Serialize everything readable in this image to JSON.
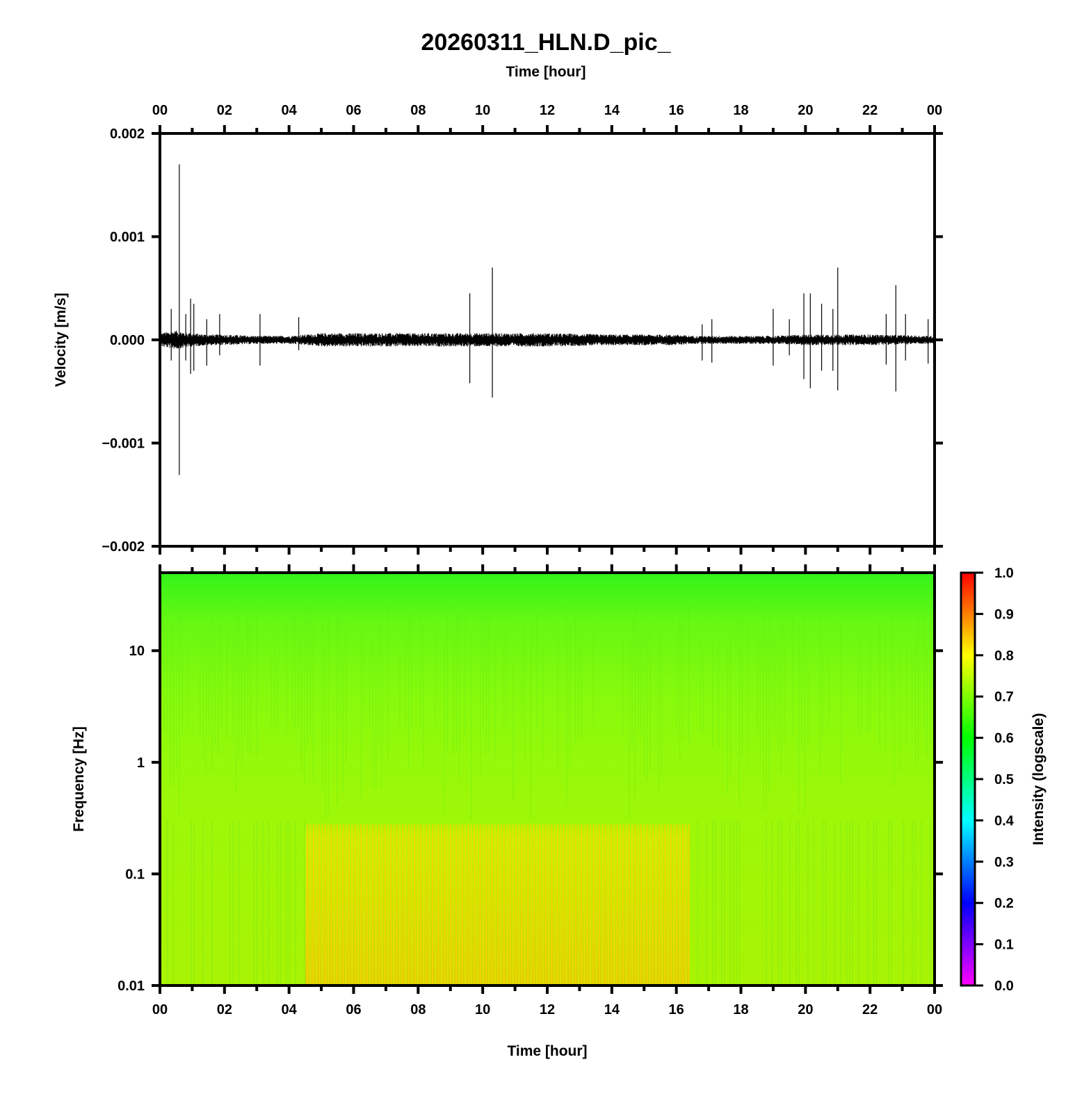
{
  "chart_data": [
    {
      "type": "line",
      "title": "20260311_HLN.D_pic_",
      "xlabel": "Time [hour]",
      "ylabel": "Velocity [m/s]",
      "xlim": [
        0,
        24
      ],
      "ylim": [
        -0.002,
        0.002
      ],
      "x_ticks": [
        "00",
        "02",
        "04",
        "06",
        "08",
        "10",
        "12",
        "14",
        "16",
        "18",
        "20",
        "22",
        "00"
      ],
      "y_ticks": [
        "0.002",
        "0.001",
        "0.000",
        "−0.001",
        "−0.002"
      ],
      "grid": false,
      "series": [
        {
          "noise_envelope": {
            "hours": [
              0,
              0.5,
              1.0,
              1.5,
              2.0,
              3.0,
              4.0,
              4.5,
              5.0,
              8.0,
              10.0,
              12.0,
              14.0,
              16.0,
              16.5,
              18.0,
              19.0,
              20.0,
              22.0,
              24.0
            ],
            "amplitude": [
              5e-05,
              7e-05,
              5e-05,
              4e-05,
              4e-05,
              3e-05,
              3e-05,
              4e-05,
              5e-05,
              5e-05,
              5e-05,
              5e-05,
              4e-05,
              4e-05,
              3e-05,
              3e-05,
              3e-05,
              4e-05,
              4e-05,
              3e-05
            ]
          },
          "spikes": [
            {
              "hour": 0.6,
              "max": 0.0017,
              "min": -0.00131
            },
            {
              "hour": 0.35,
              "max": 0.0003,
              "min": -0.0002
            },
            {
              "hour": 0.8,
              "max": 0.00025,
              "min": -0.0002
            },
            {
              "hour": 0.95,
              "max": 0.0004,
              "min": -0.00033
            },
            {
              "hour": 1.05,
              "max": 0.00035,
              "min": -0.0003
            },
            {
              "hour": 1.45,
              "max": 0.0002,
              "min": -0.00025
            },
            {
              "hour": 1.85,
              "max": 0.00025,
              "min": -0.00015
            },
            {
              "hour": 3.1,
              "max": 0.00025,
              "min": -0.00025
            },
            {
              "hour": 4.3,
              "max": 0.00022,
              "min": -0.0001
            },
            {
              "hour": 9.6,
              "max": 0.00045,
              "min": -0.00042
            },
            {
              "hour": 10.3,
              "max": 0.0007,
              "min": -0.00056
            },
            {
              "hour": 16.8,
              "max": 0.00015,
              "min": -0.0002
            },
            {
              "hour": 17.1,
              "max": 0.0002,
              "min": -0.00022
            },
            {
              "hour": 19.0,
              "max": 0.0003,
              "min": -0.00025
            },
            {
              "hour": 19.5,
              "max": 0.0002,
              "min": -0.00015
            },
            {
              "hour": 19.95,
              "max": 0.00045,
              "min": -0.00038
            },
            {
              "hour": 20.15,
              "max": 0.00045,
              "min": -0.00047
            },
            {
              "hour": 20.5,
              "max": 0.00035,
              "min": -0.0003
            },
            {
              "hour": 20.85,
              "max": 0.0003,
              "min": -0.0003
            },
            {
              "hour": 21.0,
              "max": 0.0007,
              "min": -0.00049
            },
            {
              "hour": 22.5,
              "max": 0.00025,
              "min": -0.00024
            },
            {
              "hour": 22.8,
              "max": 0.00053,
              "min": -0.0005
            },
            {
              "hour": 23.1,
              "max": 0.00025,
              "min": -0.0002
            },
            {
              "hour": 23.8,
              "max": 0.0002,
              "min": -0.00023
            }
          ]
        }
      ]
    },
    {
      "type": "heatmap",
      "xlabel": "Time [hour]",
      "ylabel": "Frequency [Hz]",
      "xlim": [
        0,
        24
      ],
      "ylim": [
        0.01,
        50
      ],
      "yscale": "log",
      "x_ticks": [
        "00",
        "02",
        "04",
        "06",
        "08",
        "10",
        "12",
        "14",
        "16",
        "18",
        "20",
        "22",
        "00"
      ],
      "y_ticks": [
        "10",
        "1",
        "0.1",
        "0.01"
      ],
      "colorbar": {
        "label": "Intensity (logscale)",
        "range": [
          0.0,
          1.0
        ],
        "ticks": [
          "1.0",
          "0.9",
          "0.8",
          "0.7",
          "0.6",
          "0.5",
          "0.4",
          "0.3",
          "0.2",
          "0.1",
          "0.0"
        ],
        "colormap": [
          "#ff00ff",
          "#0000ff",
          "#00ffff",
          "#00ff00",
          "#ffff00",
          "#ff0000"
        ]
      },
      "intensity_profile": {
        "frequency_hz": [
          50,
          20,
          10,
          3,
          1,
          0.3,
          0.1,
          0.01
        ],
        "quiet_hours_intensity": [
          0.64,
          0.67,
          0.69,
          0.7,
          0.71,
          0.72,
          0.72,
          0.72
        ],
        "active_window_hours": [
          4.5,
          16.4
        ],
        "active_window_intensity_below_0_3hz": 0.78
      }
    }
  ]
}
